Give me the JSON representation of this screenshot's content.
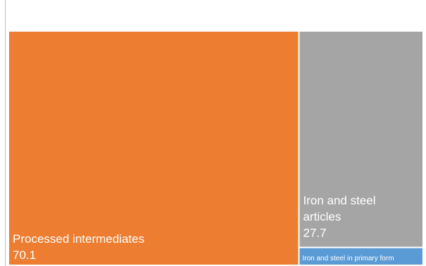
{
  "chart_data": {
    "type": "treemap",
    "title": "",
    "series": [
      {
        "label": "Processed intermediates",
        "value": 70.1,
        "value_text": "70.1",
        "color": "#ED7D31"
      },
      {
        "label": "Iron and steel articles",
        "value": 27.7,
        "value_text": "27.7",
        "color": "#A5A5A5"
      },
      {
        "label": "Iron and steel in primary form",
        "value": 2.2,
        "value_text": "",
        "color": "#5B9BD5"
      }
    ]
  }
}
